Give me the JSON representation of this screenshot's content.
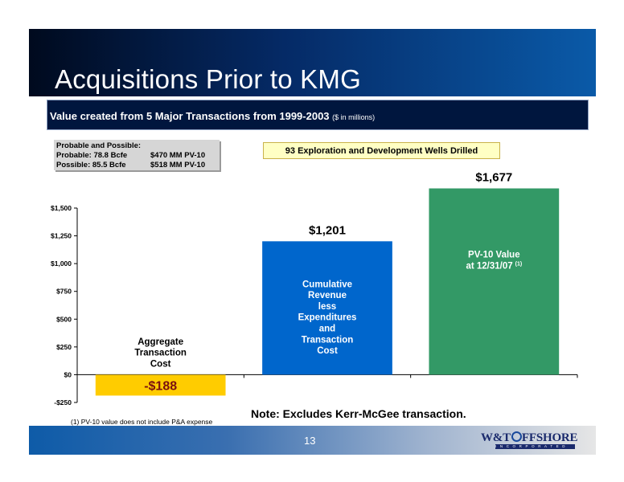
{
  "slide": {
    "title": "Acquisitions Prior to KMG",
    "subtitle_main": "Value created from 5 Major Transactions from 1999-2003",
    "subtitle_unit": "($ in millions)",
    "page_number": "13",
    "note": "Note: Excludes Kerr-McGee transaction.",
    "footnote": "(1) PV-10 value does not include P&A expense"
  },
  "reserves": {
    "heading": "Probable and Possible:",
    "rows": [
      {
        "label": "Probable:  78.8 Bcfe",
        "value": "$470 MM PV-10"
      },
      {
        "label": "Possible:   85.5 Bcfe",
        "value": "$518 MM PV-10"
      }
    ]
  },
  "wells_callout": "93 Exploration and Development Wells Drilled",
  "logo": {
    "name_prefix": "W&T",
    "name_suffix": "FFSHORE",
    "tagline": "INCORPORATED",
    "icon": "globe-o-icon"
  },
  "colors": {
    "aggregate": "#ffcc00",
    "cumulative": "#0066cc",
    "pv10": "#339966"
  },
  "chart_data": {
    "type": "bar",
    "categories": [
      "Aggregate Transaction Cost",
      "Cumulative Revenue less Expenditures and Transaction Cost",
      "PV-10 Value at 12/31/07 (1)"
    ],
    "values": [
      -188,
      1201,
      1677
    ],
    "value_labels": [
      "-$188",
      "$1,201",
      "$1,677"
    ],
    "bar_labels": [
      [
        "Aggregate",
        "Transaction",
        "Cost"
      ],
      [
        "Cumulative",
        "Revenue",
        "less",
        "Expenditures",
        "and",
        "Transaction",
        "Cost"
      ],
      [
        "PV-10 Value",
        "at 12/31/07"
      ]
    ],
    "bar_label_superscripts": [
      "",
      "",
      "(1)"
    ],
    "ylim": [
      -250,
      1500
    ],
    "yticks": [
      -250,
      0,
      250,
      500,
      750,
      1000,
      1250,
      1500
    ],
    "ytick_labels": [
      "-$250",
      "$0",
      "$250",
      "$500",
      "$750",
      "$1,000",
      "$1,250",
      "$1,500"
    ],
    "title": "",
    "xlabel": "",
    "ylabel": "",
    "grid": false,
    "legend": "none"
  }
}
